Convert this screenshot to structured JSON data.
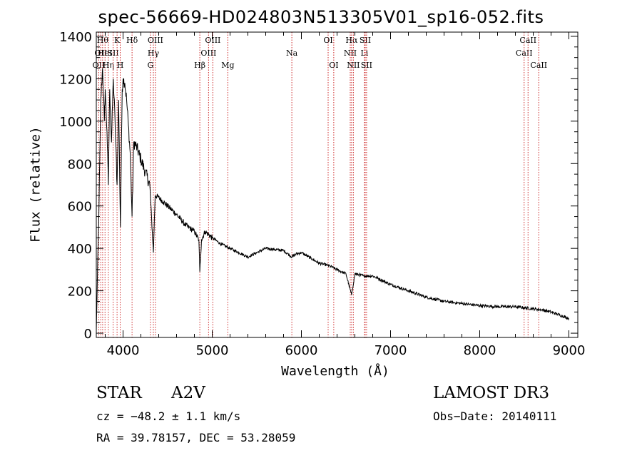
{
  "chart_data": {
    "type": "line",
    "title": "spec-56669-HD024803N513305V01_sp16-052.fits",
    "xlabel": "Wavelength (Å)",
    "ylabel": "Flux (relative)",
    "xlim": [
      3700,
      9100
    ],
    "ylim": [
      -20,
      1420
    ],
    "x_ticks": [
      4000,
      5000,
      6000,
      7000,
      8000,
      9000
    ],
    "y_ticks": [
      0,
      200,
      400,
      600,
      800,
      1000,
      1200,
      1400
    ],
    "grid": false,
    "series": [
      {
        "name": "spectrum",
        "x": [
          3700,
          3730,
          3750,
          3770,
          3790,
          3800,
          3820,
          3835,
          3850,
          3870,
          3890,
          3910,
          3933,
          3950,
          3970,
          3990,
          4000,
          4020,
          4040,
          4060,
          4080,
          4101,
          4120,
          4150,
          4200,
          4250,
          4300,
          4340,
          4360,
          4400,
          4450,
          4500,
          4600,
          4700,
          4800,
          4850,
          4861,
          4880,
          4920,
          5000,
          5100,
          5200,
          5300,
          5400,
          5500,
          5600,
          5700,
          5800,
          5893,
          5950,
          6000,
          6100,
          6200,
          6300,
          6400,
          6500,
          6563,
          6600,
          6700,
          6800,
          6900,
          7000,
          7200,
          7400,
          7600,
          7800,
          8000,
          8200,
          8400,
          8500,
          8600,
          8700,
          8800,
          8900,
          9000
        ],
        "y": [
          10,
          600,
          1100,
          1250,
          1000,
          1150,
          950,
          700,
          1150,
          900,
          1200,
          1000,
          700,
          1100,
          500,
          1150,
          1200,
          1180,
          1100,
          980,
          850,
          550,
          900,
          880,
          820,
          760,
          700,
          380,
          650,
          640,
          620,
          600,
          560,
          510,
          480,
          440,
          290,
          440,
          480,
          450,
          420,
          400,
          380,
          360,
          380,
          400,
          395,
          390,
          360,
          375,
          380,
          355,
          330,
          320,
          300,
          280,
          180,
          280,
          270,
          270,
          250,
          230,
          200,
          170,
          150,
          140,
          130,
          125,
          125,
          120,
          115,
          110,
          100,
          85,
          70
        ]
      }
    ],
    "line_markers": [
      {
        "wavelength": 3727,
        "label": "OII",
        "row": 2
      },
      {
        "wavelength": 3750,
        "label": "OII",
        "row": 1
      },
      {
        "wavelength": 3771,
        "label": "Hθ",
        "row": 0
      },
      {
        "wavelength": 3798,
        "label": "HeI",
        "row": 1
      },
      {
        "wavelength": 3835,
        "label": "Hη",
        "row": 2
      },
      {
        "wavelength": 3889,
        "label": "SII",
        "row": 1
      },
      {
        "wavelength": 3933,
        "label": "K",
        "row": 0
      },
      {
        "wavelength": 3968,
        "label": "H",
        "row": 2
      },
      {
        "wavelength": 4101,
        "label": "Hδ",
        "row": 0
      },
      {
        "wavelength": 4307,
        "label": "G",
        "row": 2
      },
      {
        "wavelength": 4340,
        "label": "Hγ",
        "row": 1
      },
      {
        "wavelength": 4363,
        "label": "OIII",
        "row": 0
      },
      {
        "wavelength": 4861,
        "label": "Hβ",
        "row": 2
      },
      {
        "wavelength": 4959,
        "label": "OIII",
        "row": 1
      },
      {
        "wavelength": 5007,
        "label": "OIII",
        "row": 0
      },
      {
        "wavelength": 5175,
        "label": "Mg",
        "row": 2
      },
      {
        "wavelength": 5893,
        "label": "Na",
        "row": 1
      },
      {
        "wavelength": 6300,
        "label": "OI",
        "row": 0
      },
      {
        "wavelength": 6363,
        "label": "OI",
        "row": 2
      },
      {
        "wavelength": 6548,
        "label": "NII",
        "row": 1
      },
      {
        "wavelength": 6563,
        "label": "Hα",
        "row": 0
      },
      {
        "wavelength": 6583,
        "label": "NII",
        "row": 2
      },
      {
        "wavelength": 6707,
        "label": "Li",
        "row": 1
      },
      {
        "wavelength": 6716,
        "label": "SII",
        "row": 0
      },
      {
        "wavelength": 6731,
        "label": "SII",
        "row": 2
      },
      {
        "wavelength": 8498,
        "label": "CaII",
        "row": 1
      },
      {
        "wavelength": 8542,
        "label": "CaII",
        "row": 0
      },
      {
        "wavelength": 8662,
        "label": "CaII",
        "row": 2
      }
    ]
  },
  "info": {
    "object_class": "STAR",
    "subclass": "A2V",
    "survey": "LAMOST DR3",
    "cz": "cz = −48.2 ± 1.1 km/s",
    "obs_date": "Obs−Date: 20140111",
    "coords": "RA =  39.78157, DEC =  53.28059"
  },
  "colors": {
    "marker_line": "#cc2222",
    "spectrum": "#000000"
  }
}
